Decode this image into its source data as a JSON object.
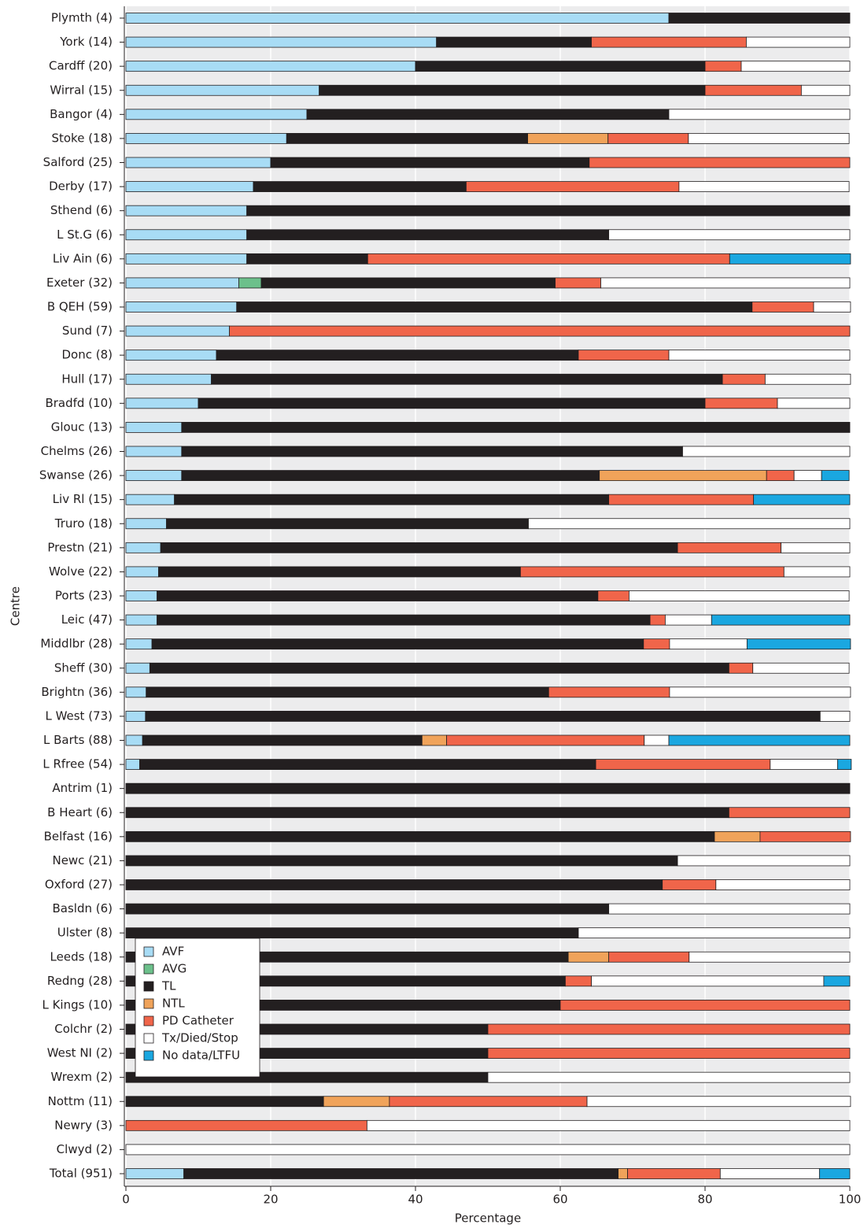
{
  "chart_data": {
    "type": "stacked_barh",
    "ylabel": "Centre",
    "xlabel": "Percentage",
    "categories": [
      "Plymth (4)",
      "York (14)",
      "Cardff (20)",
      "Wirral (15)",
      "Bangor (4)",
      "Stoke (18)",
      "Salford (25)",
      "Derby (17)",
      "Sthend (6)",
      "L St.G (6)",
      "Liv Ain (6)",
      "Exeter (32)",
      "B QEH (59)",
      "Sund (7)",
      "Donc (8)",
      "Hull (17)",
      "Bradfd (10)",
      "Glouc (13)",
      "Chelms (26)",
      "Swanse (26)",
      "Liv Rl (15)",
      "Truro (18)",
      "Prestn (21)",
      "Wolve (22)",
      "Ports (23)",
      "Leic (47)",
      "Middlbr (28)",
      "Sheff (30)",
      "Brightn (36)",
      "L West (73)",
      "L Barts (88)",
      "L Rfree (54)",
      "Antrim (1)",
      "B Heart (6)",
      "Belfast (16)",
      "Newc (21)",
      "Oxford (27)",
      "Basldn (6)",
      "Ulster (8)",
      "Leeds (18)",
      "Redng (28)",
      "L Kings (10)",
      "Colchr (2)",
      "West NI (2)",
      "Wrexm (2)",
      "Nottm (11)",
      "Newry (3)",
      "Clwyd (2)",
      "Total (951)"
    ],
    "series": [
      {
        "name": "AVF",
        "color": "#a8dcf5",
        "values": [
          75,
          42.9,
          40,
          26.7,
          25,
          22.2,
          20,
          17.6,
          16.7,
          16.7,
          16.7,
          15.6,
          15.3,
          14.3,
          12.5,
          11.8,
          10,
          7.7,
          7.7,
          7.7,
          6.7,
          5.6,
          4.8,
          4.5,
          4.3,
          4.3,
          3.6,
          3.3,
          2.8,
          2.7,
          2.3,
          1.9,
          0,
          0,
          0,
          0,
          0,
          0,
          0,
          0,
          0,
          0,
          0,
          0,
          0,
          0,
          0,
          0,
          8
        ]
      },
      {
        "name": "AVG",
        "color": "#6cc08b",
        "values": [
          0,
          0,
          0,
          0,
          0,
          0,
          0,
          0,
          0,
          0,
          0,
          3.1,
          0,
          0,
          0,
          0,
          0,
          0,
          0,
          0,
          0,
          0,
          0,
          0,
          0,
          0,
          0,
          0,
          0,
          0,
          0,
          0,
          0,
          0,
          0,
          0,
          0,
          0,
          0,
          0,
          0,
          0,
          0,
          0,
          0,
          0,
          0,
          0,
          0
        ]
      },
      {
        "name": "TL",
        "color": "#231f20",
        "values": [
          25,
          21.4,
          40,
          53.3,
          50,
          33.3,
          44,
          29.4,
          83.3,
          50,
          16.7,
          40.6,
          71.2,
          0,
          50,
          70.6,
          70,
          92.3,
          69.2,
          57.7,
          60,
          50,
          71.4,
          50,
          60.9,
          68.1,
          67.9,
          80,
          55.6,
          93.2,
          38.6,
          63,
          100,
          83.3,
          81.3,
          76.2,
          74.1,
          66.7,
          62.5,
          61.1,
          60.7,
          60,
          50,
          50,
          50,
          27.3,
          0,
          0,
          60
        ]
      },
      {
        "name": "NTL",
        "color": "#f0a35a",
        "values": [
          0,
          0,
          0,
          0,
          0,
          11.1,
          0,
          0,
          0,
          0,
          0,
          0,
          0,
          0,
          0,
          0,
          0,
          0,
          0,
          23.1,
          0,
          0,
          0,
          0,
          0,
          0,
          0,
          0,
          0,
          0,
          3.4,
          0,
          0,
          0,
          6.3,
          0,
          0,
          0,
          0,
          5.6,
          0,
          0,
          0,
          0,
          0,
          9.1,
          0,
          0,
          1.3
        ]
      },
      {
        "name": "PD Catheter",
        "color": "#f0654a",
        "values": [
          0,
          21.4,
          5,
          13.3,
          0,
          11.1,
          36,
          29.4,
          0,
          0,
          50,
          6.3,
          8.5,
          85.7,
          12.5,
          5.9,
          10,
          0,
          0,
          3.8,
          20,
          0,
          14.3,
          36.4,
          4.3,
          2.1,
          3.6,
          3.3,
          16.7,
          0,
          27.3,
          24.1,
          0,
          16.7,
          12.5,
          0,
          7.4,
          0,
          0,
          11.1,
          3.6,
          40,
          50,
          50,
          0,
          27.3,
          33.3,
          0,
          12.8
        ]
      },
      {
        "name": "Tx/Died/Stop",
        "color": "#ffffff",
        "values": [
          0,
          14.3,
          15,
          6.7,
          25,
          22.2,
          0,
          23.5,
          0,
          33.3,
          0,
          34.4,
          5.1,
          0,
          25,
          11.8,
          10,
          0,
          23.1,
          3.8,
          0,
          44.4,
          9.5,
          9.1,
          30.4,
          6.4,
          10.7,
          13.3,
          25,
          4.1,
          3.4,
          9.3,
          0,
          0,
          0,
          23.8,
          18.5,
          33.3,
          37.5,
          22.2,
          32.1,
          0,
          0,
          0,
          50,
          36.4,
          66.7,
          100,
          13.7
        ]
      },
      {
        "name": "No data/LTFU",
        "color": "#1aa7e0",
        "values": [
          0,
          0,
          0,
          0,
          0,
          0,
          0,
          0,
          0,
          0,
          16.7,
          0,
          0,
          0,
          0,
          0,
          0,
          0,
          0,
          3.8,
          13.3,
          0,
          0,
          0,
          0,
          19.1,
          14.3,
          0,
          0,
          0,
          25,
          1.9,
          0,
          0,
          0,
          0,
          0,
          0,
          0,
          0,
          3.6,
          0,
          0,
          0,
          0,
          0,
          0,
          0,
          4.2
        ]
      }
    ],
    "xlim": [
      0,
      100
    ],
    "xticks": [
      0,
      20,
      40,
      60,
      80,
      100
    ],
    "grid": true,
    "legend_loc": "lower left"
  }
}
